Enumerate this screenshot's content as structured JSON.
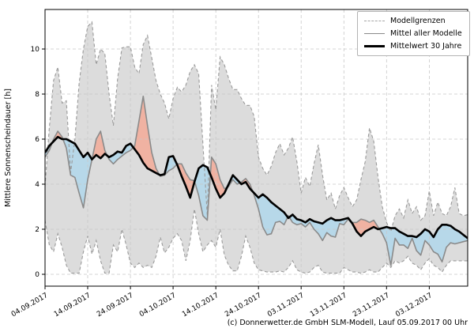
{
  "figure": {
    "ylabel": "Mittlere Sonnenscheindauer [h]",
    "footer": "(c) Donnerwetter.de GmbH SLM-Modell, Lauf 05.09.2017 00 Uhr"
  },
  "legend": {
    "items": [
      {
        "label": "Modellgrenzen",
        "style": "dashed"
      },
      {
        "label": "Mittel aller Modelle",
        "style": "solid"
      },
      {
        "label": "Mittelwert 30 Jahre",
        "style": "thick"
      }
    ]
  },
  "colors": {
    "band_fill": "#dcdcdc",
    "band_edge": "#9a9a9a",
    "grid": "#c8c8c8",
    "model_mean_line": "#8a8a8a",
    "mean30_line": "#000000",
    "above_normal_fill": "#f0b2a2",
    "below_normal_fill": "#b7d8e9",
    "spine": "#000000"
  },
  "chart_data": {
    "type": "line",
    "title": "",
    "ylabel": "Mittlere Sonnenscheindauer [h]",
    "x_unit": "days since 04.09.2017 (daily values)",
    "x_step_days": 1,
    "x_range_days": [
      0,
      99
    ],
    "ylim": [
      -0.5,
      11.75
    ],
    "y_ticks": [
      0,
      2,
      4,
      6,
      8,
      10
    ],
    "x_tick_days": [
      0,
      10,
      20,
      30,
      40,
      50,
      60,
      70,
      80,
      90
    ],
    "x_tick_labels": [
      "04.09.2017",
      "14.09.2017",
      "24.09.2017",
      "04.10.2017",
      "14.10.2017",
      "24.10.2017",
      "03.11.2017",
      "13.11.2017",
      "23.11.2017",
      "03.12.2017"
    ],
    "grid": true,
    "legend_position": "upper right",
    "series": [
      {
        "name": "Modellgrenze oben (obere Modellgrenze)",
        "values": [
          3.9,
          6.5,
          8.6,
          9.2,
          7.6,
          7.7,
          4.5,
          6.0,
          8.5,
          10.0,
          11.0,
          11.2,
          9.3,
          10.0,
          9.8,
          8.0,
          6.6,
          8.7,
          10.05,
          10.1,
          10.1,
          9.2,
          8.9,
          10.2,
          10.6,
          9.6,
          8.6,
          8.0,
          7.6,
          6.9,
          7.8,
          8.3,
          8.1,
          8.4,
          9.0,
          9.3,
          8.9,
          5.75,
          2.6,
          8.4,
          7.3,
          9.65,
          9.3,
          8.7,
          8.2,
          8.2,
          7.8,
          7.5,
          7.5,
          7.0,
          5.2,
          4.7,
          4.4,
          4.8,
          5.4,
          5.8,
          5.3,
          5.6,
          6.1,
          5.0,
          3.6,
          4.3,
          3.9,
          4.9,
          5.75,
          4.4,
          3.3,
          3.6,
          2.9,
          3.5,
          3.85,
          3.4,
          3.0,
          3.3,
          4.2,
          5.0,
          6.5,
          5.9,
          4.3,
          3.0,
          2.3,
          1.9,
          2.6,
          2.9,
          2.5,
          3.3,
          2.7,
          3.0,
          2.4,
          2.6,
          3.7,
          2.6,
          3.2,
          2.7,
          2.6,
          3.0,
          3.85,
          2.7,
          2.6,
          2.65
        ]
      },
      {
        "name": "Modellgrenze unten (untere Modellgrenze)",
        "values": [
          2.4,
          1.3,
          1.0,
          1.8,
          1.2,
          0.4,
          0.05,
          0.05,
          0.05,
          1.0,
          1.7,
          0.9,
          1.5,
          0.6,
          0.05,
          0.05,
          1.3,
          1.0,
          2.0,
          1.3,
          0.5,
          0.3,
          0.5,
          0.3,
          0.4,
          0.3,
          0.8,
          1.65,
          0.95,
          1.2,
          1.6,
          1.8,
          1.5,
          0.6,
          1.5,
          2.9,
          1.8,
          1.0,
          1.3,
          1.5,
          1.2,
          2.0,
          0.85,
          0.4,
          0.15,
          0.15,
          0.8,
          1.7,
          1.2,
          0.5,
          0.2,
          0.15,
          0.1,
          0.1,
          0.1,
          0.15,
          0.1,
          0.3,
          0.6,
          0.2,
          0.1,
          0.05,
          0.1,
          0.3,
          0.4,
          0.1,
          0.05,
          0.05,
          0.05,
          0.05,
          0.3,
          0.2,
          0.1,
          0.1,
          0.05,
          0.1,
          0.2,
          0.1,
          0.1,
          0.3,
          0.5,
          0.3,
          0.6,
          0.5,
          0.6,
          0.8,
          0.5,
          0.4,
          0.2,
          0.5,
          0.7,
          0.4,
          0.3,
          0.1,
          0.4,
          0.6,
          0.6,
          0.6,
          0.6,
          0.6
        ]
      },
      {
        "name": "Mittel aller Modelle",
        "values": [
          5.2,
          5.5,
          6.0,
          6.35,
          6.1,
          5.6,
          4.4,
          4.3,
          3.6,
          2.95,
          4.2,
          5.1,
          6.0,
          6.35,
          5.5,
          5.1,
          4.9,
          5.1,
          5.25,
          5.4,
          5.5,
          5.7,
          6.8,
          7.9,
          6.6,
          5.4,
          4.7,
          4.35,
          4.4,
          4.6,
          4.7,
          4.9,
          4.9,
          4.5,
          4.2,
          4.15,
          3.5,
          2.6,
          2.4,
          5.2,
          4.9,
          4.2,
          3.8,
          3.9,
          4.2,
          4.0,
          4.1,
          4.25,
          4.0,
          3.5,
          2.9,
          2.1,
          1.75,
          1.8,
          2.3,
          2.35,
          2.2,
          2.6,
          2.3,
          2.2,
          2.25,
          2.1,
          2.3,
          2.0,
          1.8,
          1.5,
          1.85,
          1.7,
          1.65,
          2.25,
          2.2,
          2.45,
          2.3,
          2.3,
          2.45,
          2.4,
          2.3,
          2.4,
          2.1,
          1.8,
          1.4,
          0.4,
          1.6,
          1.3,
          1.3,
          1.15,
          1.6,
          1.05,
          0.85,
          1.5,
          1.3,
          1.0,
          0.9,
          0.55,
          1.2,
          1.4,
          1.35,
          1.4,
          1.45,
          1.5
        ]
      },
      {
        "name": "Mittelwert 30 Jahre",
        "values": [
          5.4,
          5.7,
          5.9,
          6.1,
          6.0,
          6.0,
          5.9,
          5.8,
          5.5,
          5.2,
          5.4,
          5.1,
          5.3,
          5.15,
          5.35,
          5.2,
          5.3,
          5.45,
          5.4,
          5.7,
          5.8,
          5.55,
          5.3,
          4.95,
          4.7,
          4.6,
          4.5,
          4.4,
          4.45,
          5.2,
          5.25,
          4.85,
          4.35,
          3.9,
          3.4,
          4.1,
          4.7,
          4.85,
          4.75,
          4.3,
          3.8,
          3.4,
          3.6,
          4.0,
          4.4,
          4.2,
          4.0,
          4.1,
          3.8,
          3.6,
          3.4,
          3.55,
          3.4,
          3.2,
          3.05,
          2.9,
          2.75,
          2.5,
          2.65,
          2.45,
          2.4,
          2.3,
          2.45,
          2.35,
          2.3,
          2.25,
          2.4,
          2.5,
          2.4,
          2.4,
          2.45,
          2.5,
          2.25,
          1.9,
          1.7,
          1.9,
          2.0,
          2.1,
          2.0,
          2.05,
          2.1,
          2.05,
          2.05,
          1.9,
          1.8,
          1.7,
          1.7,
          1.65,
          1.8,
          2.0,
          1.9,
          1.65,
          2.0,
          2.2,
          2.2,
          2.15,
          2.0,
          1.9,
          1.75,
          1.6
        ]
      }
    ],
    "fill_semantics": {
      "gray_band": "Spanne zwischen den Modellgrenzen",
      "red": "Mittel aller Modelle über Mittelwert 30 Jahre",
      "blue": "Mittel aller Modelle unter Mittelwert 30 Jahre"
    }
  }
}
